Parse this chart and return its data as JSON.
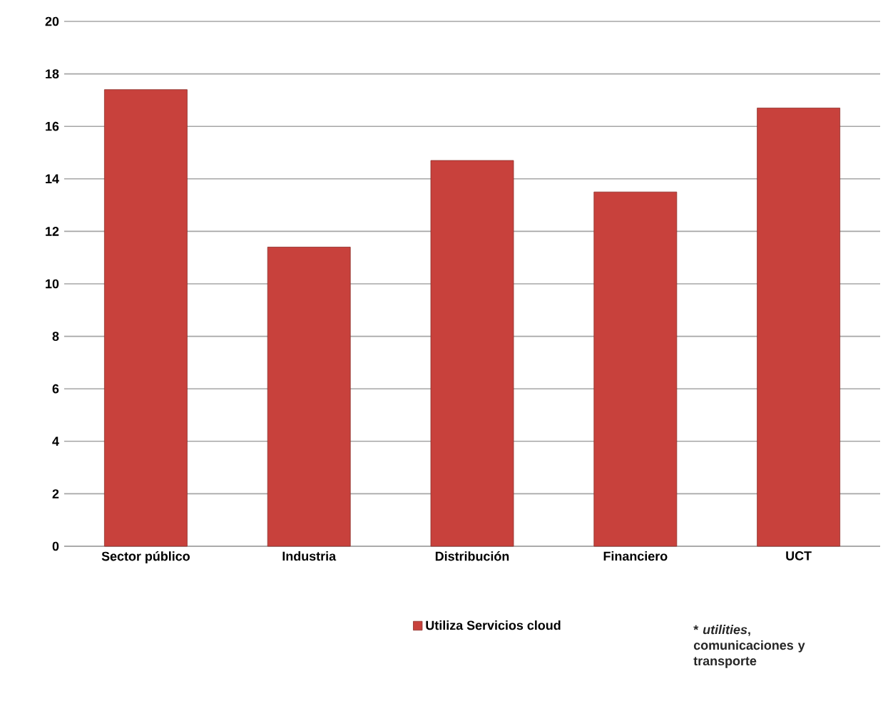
{
  "chart_data": {
    "type": "bar",
    "categories": [
      "Sector público",
      "Industria",
      "Distribución",
      "Financiero",
      "UCT"
    ],
    "series": [
      {
        "name": "Utiliza Servicios cloud",
        "color": "#c8413c",
        "values": [
          17.4,
          11.4,
          14.7,
          13.5,
          16.7
        ]
      }
    ],
    "ylim": [
      0,
      20
    ],
    "yticks": [
      0,
      2,
      4,
      6,
      8,
      10,
      12,
      14,
      16,
      18,
      20
    ],
    "grid": "y",
    "legend": "bottom",
    "annotations": [
      "* *utilities*, comunicaciones y transporte"
    ]
  }
}
